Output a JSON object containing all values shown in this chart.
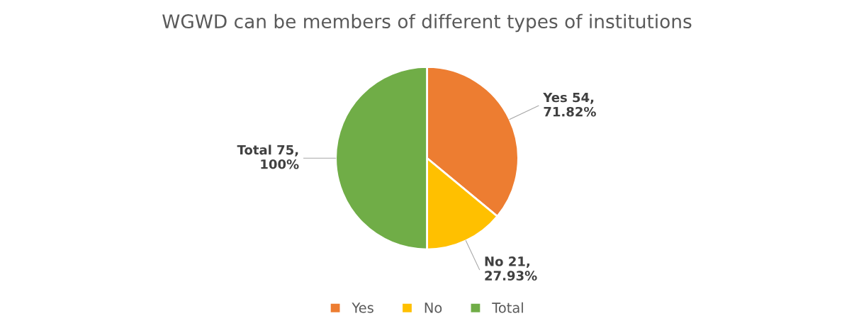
{
  "chart_data": {
    "type": "pie",
    "title": "WGWD can be members of different types of institutions",
    "categories": [
      "Yes",
      "No",
      "Total"
    ],
    "values": [
      54,
      21,
      75
    ],
    "colors": [
      "#ed7d31",
      "#ffc000",
      "#70ad47"
    ],
    "value_labels": [
      "Yes 54,\n71.82%",
      "No 21,\n27.93%",
      "Total 75,\n100%"
    ],
    "legend": "bottom"
  }
}
